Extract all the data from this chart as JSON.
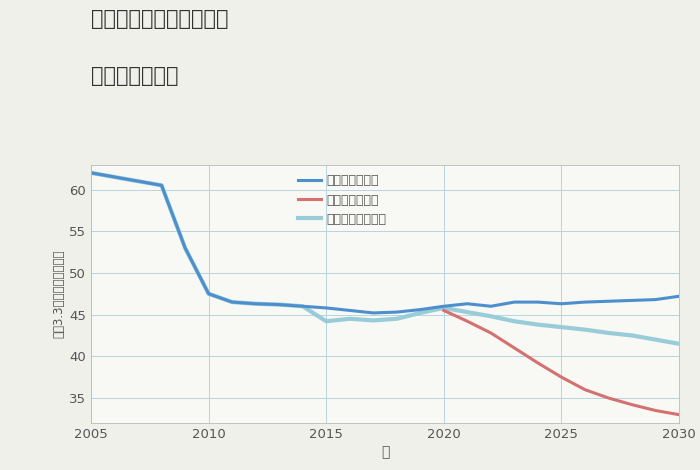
{
  "title_line1": "奈良県奈良市鹿野園町の",
  "title_line2": "土地の価格推移",
  "xlabel": "年",
  "ylabel": "坪（3.3㎡）単価（万円）",
  "background_color": "#f0f0eb",
  "plot_background_color": "#f8f8f5",
  "grid_color": "#b8d4e0",
  "ylim": [
    32,
    63
  ],
  "xlim": [
    2005,
    2030
  ],
  "yticks": [
    35,
    40,
    45,
    50,
    55,
    60
  ],
  "xticks": [
    2005,
    2010,
    2015,
    2020,
    2025,
    2030
  ],
  "good_scenario": {
    "label": "グッドシナリオ",
    "color": "#4d8fcc",
    "x": [
      2005,
      2006,
      2007,
      2008,
      2009,
      2010,
      2011,
      2012,
      2013,
      2014,
      2015,
      2016,
      2017,
      2018,
      2019,
      2020,
      2021,
      2022,
      2023,
      2024,
      2025,
      2026,
      2027,
      2028,
      2029,
      2030
    ],
    "y": [
      62.0,
      61.5,
      61.0,
      60.5,
      53.0,
      47.5,
      46.5,
      46.3,
      46.2,
      46.0,
      45.8,
      45.5,
      45.2,
      45.3,
      45.6,
      46.0,
      46.3,
      46.0,
      46.5,
      46.5,
      46.3,
      46.5,
      46.6,
      46.7,
      46.8,
      47.2
    ],
    "linewidth": 2.2,
    "linestyle": "-"
  },
  "bad_scenario": {
    "label": "バッドシナリオ",
    "color": "#d47070",
    "x": [
      2020,
      2021,
      2022,
      2023,
      2024,
      2025,
      2026,
      2027,
      2028,
      2029,
      2030
    ],
    "y": [
      45.5,
      44.2,
      42.8,
      41.0,
      39.2,
      37.5,
      36.0,
      35.0,
      34.2,
      33.5,
      33.0
    ],
    "linewidth": 2.2,
    "linestyle": "-"
  },
  "normal_scenario": {
    "label": "ノーマルシナリオ",
    "color": "#99ccd9",
    "x": [
      2005,
      2006,
      2007,
      2008,
      2009,
      2010,
      2011,
      2012,
      2013,
      2014,
      2015,
      2016,
      2017,
      2018,
      2019,
      2020,
      2021,
      2022,
      2023,
      2024,
      2025,
      2026,
      2027,
      2028,
      2029,
      2030
    ],
    "y": [
      62.0,
      61.5,
      61.0,
      60.5,
      53.0,
      47.5,
      46.5,
      46.3,
      46.2,
      46.0,
      44.2,
      44.5,
      44.3,
      44.5,
      45.2,
      45.8,
      45.3,
      44.8,
      44.2,
      43.8,
      43.5,
      43.2,
      42.8,
      42.5,
      42.0,
      41.5
    ],
    "linewidth": 3.0,
    "linestyle": "-"
  }
}
